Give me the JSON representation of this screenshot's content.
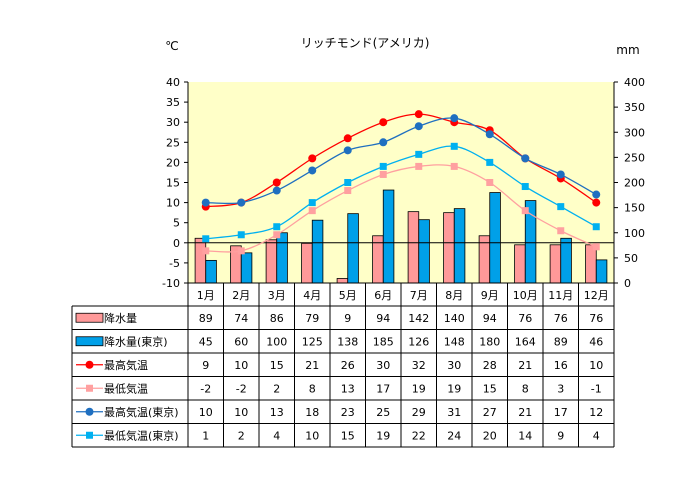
{
  "chart_data": {
    "type": "bar",
    "title": "リッチモンド(アメリカ)",
    "left_unit": "℃",
    "right_unit": "mm",
    "categories": [
      "1月",
      "2月",
      "3月",
      "4月",
      "5月",
      "6月",
      "7月",
      "8月",
      "9月",
      "10月",
      "11月",
      "12月"
    ],
    "left_axis": {
      "ylim": [
        -10,
        40
      ],
      "ticks": [
        "-10",
        "-5",
        "0",
        "5",
        "10",
        "15",
        "20",
        "25",
        "30",
        "35",
        "40"
      ]
    },
    "right_axis": {
      "ylim": [
        0,
        400
      ],
      "ticks": [
        "0",
        "50",
        "100",
        "150",
        "200",
        "250",
        "300",
        "350",
        "400"
      ]
    },
    "grid": false,
    "legend_placement": "data-table",
    "series": [
      {
        "name": "降水量",
        "kind": "bar",
        "axis": "right",
        "color": "#FF9999",
        "values": [
          89,
          74,
          86,
          79,
          9,
          94,
          142,
          140,
          94,
          76,
          76,
          76
        ]
      },
      {
        "name": "降水量(東京)",
        "kind": "bar",
        "axis": "right",
        "color": "#00A0E8",
        "values": [
          45,
          60,
          100,
          125,
          138,
          185,
          126,
          148,
          180,
          164,
          89,
          46
        ]
      },
      {
        "name": "最高気温",
        "kind": "line",
        "marker": "circle",
        "axis": "left",
        "color": "#FF0000",
        "values": [
          9,
          10,
          15,
          21,
          26,
          30,
          32,
          30,
          28,
          21,
          16,
          10
        ]
      },
      {
        "name": "最低気温",
        "kind": "line",
        "marker": "square",
        "axis": "left",
        "color": "#FFA0A0",
        "values": [
          -2,
          -2,
          2,
          8,
          13,
          17,
          19,
          19,
          15,
          8,
          3,
          -1
        ]
      },
      {
        "name": "最高気温(東京)",
        "kind": "line",
        "marker": "circle",
        "axis": "left",
        "color": "#1F6FC0",
        "values": [
          10,
          10,
          13,
          18,
          23,
          25,
          29,
          31,
          27,
          21,
          17,
          12
        ]
      },
      {
        "name": "最低気温(東京)",
        "kind": "line",
        "marker": "square",
        "axis": "left",
        "color": "#00B0F0",
        "values": [
          1,
          2,
          4,
          10,
          15,
          19,
          22,
          24,
          20,
          14,
          9,
          4
        ]
      }
    ]
  }
}
